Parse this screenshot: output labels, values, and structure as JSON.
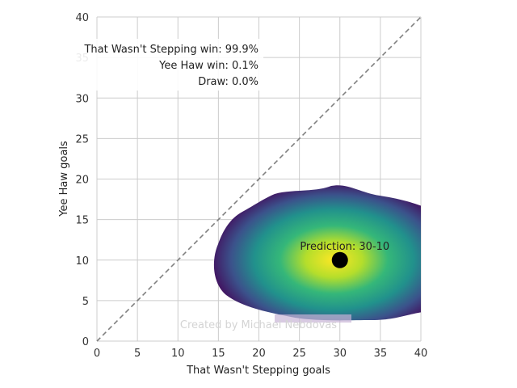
{
  "chart_data": {
    "type": "heatmap",
    "title": "",
    "xlabel": "That Wasn't Stepping goals",
    "ylabel": "Yee Haw goals",
    "xlim": [
      0,
      40
    ],
    "ylim": [
      0,
      40
    ],
    "xticks": [
      0,
      5,
      10,
      15,
      20,
      25,
      30,
      35,
      40
    ],
    "yticks": [
      0,
      5,
      10,
      15,
      20,
      25,
      30,
      35,
      40
    ],
    "grid": true,
    "reference_line": {
      "from": [
        0,
        0
      ],
      "to": [
        40,
        40
      ],
      "style": "dashed",
      "color": "#808080"
    },
    "density": {
      "center": [
        29,
        9
      ],
      "spread_x": 8,
      "spread_y": 5,
      "colormap": "viridis",
      "extent_x": [
        15,
        40
      ],
      "extent_y": [
        2.5,
        19
      ]
    },
    "prediction": {
      "x": 30,
      "y": 10,
      "label": "Prediction: 30-10"
    },
    "probabilities": [
      {
        "label": "That Wasn't Stepping win: 99.9%"
      },
      {
        "label": "Yee Haw win: 0.1%"
      },
      {
        "label": "Draw: 0.0%"
      }
    ],
    "watermark": "Created by Michael Nebdovas"
  },
  "colors": {
    "grid": "#cccccc",
    "point": "#000000",
    "viridis": [
      "#440154",
      "#3b528b",
      "#21918c",
      "#5ec962",
      "#fde725"
    ]
  }
}
